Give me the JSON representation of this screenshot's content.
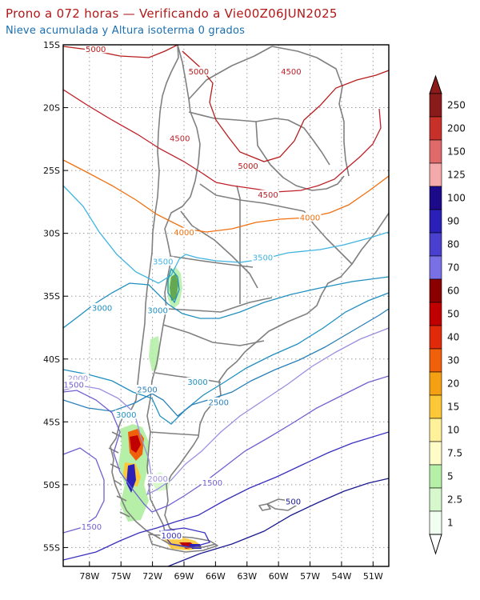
{
  "header": {
    "title": "Prono a 072 horas — Verificando a Vie00Z06JUN2025",
    "subtitle": "Nieve acumulada y Altura isoterma 0 grados"
  },
  "map": {
    "lon_range": [
      -80.5,
      -49.5
    ],
    "lat_range": [
      -56.5,
      -15
    ],
    "lon_ticks": [
      {
        "value": -78,
        "label": "78W"
      },
      {
        "value": -75,
        "label": "75W"
      },
      {
        "value": -72,
        "label": "72W"
      },
      {
        "value": -69,
        "label": "69W"
      },
      {
        "value": -66,
        "label": "66W"
      },
      {
        "value": -63,
        "label": "63W"
      },
      {
        "value": -60,
        "label": "60W"
      },
      {
        "value": -57,
        "label": "57W"
      },
      {
        "value": -54,
        "label": "54W"
      },
      {
        "value": -51,
        "label": "51W"
      }
    ],
    "lat_ticks": [
      {
        "value": -15,
        "label": "15S"
      },
      {
        "value": -20,
        "label": "20S"
      },
      {
        "value": -25,
        "label": "25S"
      },
      {
        "value": -30,
        "label": "30S"
      },
      {
        "value": -35,
        "label": "35S"
      },
      {
        "value": -40,
        "label": "40S"
      },
      {
        "value": -45,
        "label": "45S"
      },
      {
        "value": -50,
        "label": "50S"
      },
      {
        "value": -55,
        "label": "55S"
      }
    ],
    "grid": "dotted",
    "land_outline_color": "#808080"
  },
  "isotherm": {
    "levels": [
      {
        "value": 5000,
        "color": "#b81c1c"
      },
      {
        "value": 4500,
        "color": "#c0202a"
      },
      {
        "value": 4000,
        "color": "#f07010"
      },
      {
        "value": 3500,
        "color": "#40b4e0"
      },
      {
        "value": 3000,
        "color": "#2090c0"
      },
      {
        "value": 2500,
        "color": "#2a80b8"
      },
      {
        "value": 2000,
        "color": "#9a90e0"
      },
      {
        "value": 1500,
        "color": "#7060d0"
      },
      {
        "value": 1000,
        "color": "#3a30c0"
      },
      {
        "value": 500,
        "color": "#1a1a90"
      }
    ],
    "labels": [
      {
        "text": "5000",
        "lon": -77.4,
        "lat": -15.4,
        "color": "#b81c1c"
      },
      {
        "text": "5000",
        "lon": -67.6,
        "lat": -17.2,
        "color": "#b81c1c"
      },
      {
        "text": "4500",
        "lon": -58.8,
        "lat": -17.2,
        "color": "#c0202a"
      },
      {
        "text": "4500",
        "lon": -69.4,
        "lat": -22.5,
        "color": "#c0202a"
      },
      {
        "text": "5000",
        "lon": -62.9,
        "lat": -24.7,
        "color": "#b81c1c"
      },
      {
        "text": "4500",
        "lon": -61.0,
        "lat": -27.0,
        "color": "#c0202a"
      },
      {
        "text": "4000",
        "lon": -57.0,
        "lat": -28.8,
        "color": "#f07010"
      },
      {
        "text": "4000",
        "lon": -69.0,
        "lat": -30.0,
        "color": "#f07010"
      },
      {
        "text": "3500",
        "lon": -71.0,
        "lat": -32.3,
        "color": "#40b4e0"
      },
      {
        "text": "3500",
        "lon": -61.5,
        "lat": -32.0,
        "color": "#40b4e0"
      },
      {
        "text": "3000",
        "lon": -76.8,
        "lat": -36.0,
        "color": "#2090c0"
      },
      {
        "text": "3000",
        "lon": -71.5,
        "lat": -36.2,
        "color": "#2090c0"
      },
      {
        "text": "2000",
        "lon": -79.1,
        "lat": -41.6,
        "color": "#9a90e0"
      },
      {
        "text": "1500",
        "lon": -79.5,
        "lat": -42.1,
        "color": "#7060d0"
      },
      {
        "text": "2500",
        "lon": -72.5,
        "lat": -42.5,
        "color": "#2a80b8"
      },
      {
        "text": "3000",
        "lon": -67.7,
        "lat": -41.9,
        "color": "#2090c0"
      },
      {
        "text": "2500",
        "lon": -65.7,
        "lat": -43.5,
        "color": "#2a80b8"
      },
      {
        "text": "3000",
        "lon": -74.5,
        "lat": -44.5,
        "color": "#2090c0"
      },
      {
        "text": "2000",
        "lon": -71.5,
        "lat": -49.6,
        "color": "#9a90e0"
      },
      {
        "text": "1500",
        "lon": -66.3,
        "lat": -49.9,
        "color": "#7060d0"
      },
      {
        "text": "1500",
        "lon": -77.8,
        "lat": -53.4,
        "color": "#7060d0"
      },
      {
        "text": "1000",
        "lon": -70.2,
        "lat": -54.1,
        "color": "#3a30c0"
      },
      {
        "text": "500",
        "lon": -58.6,
        "lat": -51.4,
        "color": "#1a1a90"
      }
    ]
  },
  "colorbar": {
    "orientation": "vertical",
    "placement": "right",
    "bins": [
      {
        "label": "250",
        "color": "#8b1a1a"
      },
      {
        "label": "200",
        "color": "#c8302a"
      },
      {
        "label": "150",
        "color": "#e06a6a"
      },
      {
        "label": "125",
        "color": "#f4aaaa"
      },
      {
        "label": "100",
        "color": "#1c0a8a"
      },
      {
        "label": "90",
        "color": "#2a20b8"
      },
      {
        "label": "80",
        "color": "#4a40d0"
      },
      {
        "label": "70",
        "color": "#7a70e6"
      },
      {
        "label": "60",
        "color": "#8a0000"
      },
      {
        "label": "50",
        "color": "#c00000"
      },
      {
        "label": "40",
        "color": "#e02a0a"
      },
      {
        "label": "30",
        "color": "#f0600a"
      },
      {
        "label": "20",
        "color": "#f5a012"
      },
      {
        "label": "15",
        "color": "#fcc838"
      },
      {
        "label": "10",
        "color": "#fff09a"
      },
      {
        "label": "7.5",
        "color": "#fffcc8"
      },
      {
        "label": "5",
        "color": "#b6f0a8"
      },
      {
        "label": "2.5",
        "color": "#d6f8cc"
      },
      {
        "label": "1",
        "color": "#f0fff0"
      }
    ]
  }
}
